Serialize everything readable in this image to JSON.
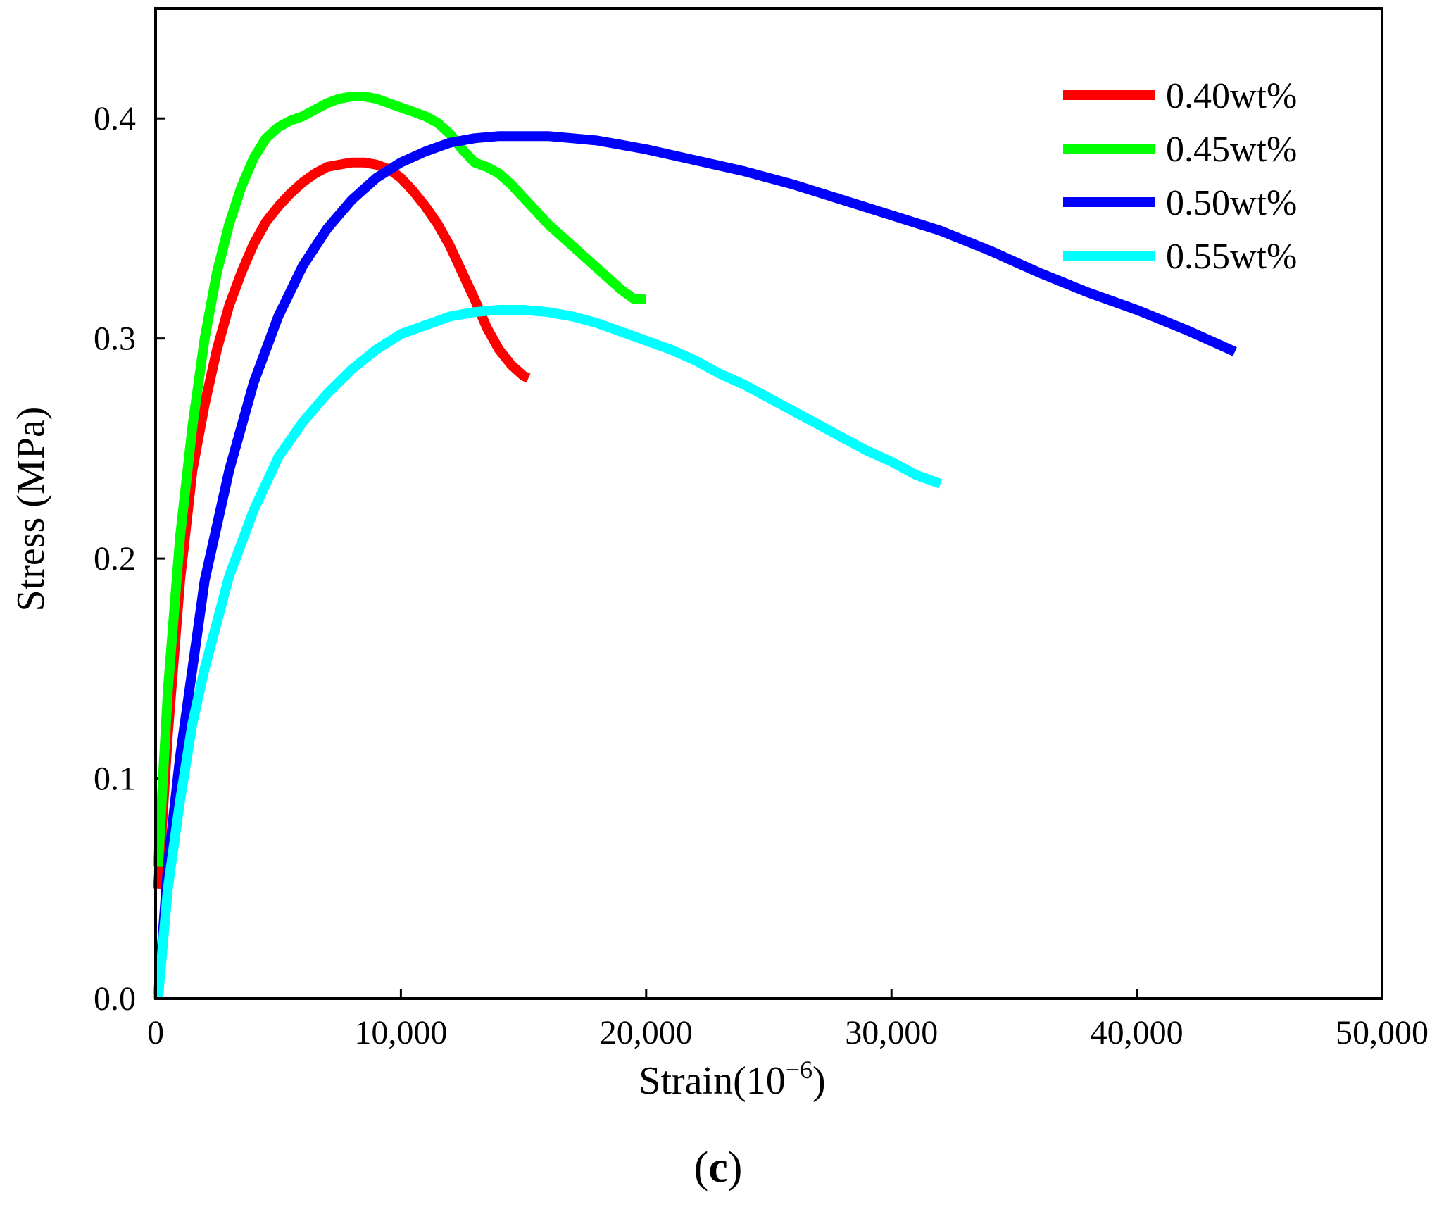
{
  "chart_data": {
    "type": "line",
    "title": "",
    "xlabel": "Strain(10",
    "xlabel_exp": "−6",
    "xlabel_close": ")",
    "ylabel": "Stress (MPa)",
    "panel_label": "c",
    "xlim": [
      0,
      50000
    ],
    "ylim": [
      0,
      0.45
    ],
    "xticks": [
      0,
      10000,
      20000,
      30000,
      40000,
      50000
    ],
    "xtick_labels": [
      "0",
      "10,000",
      "20,000",
      "30,000",
      "40,000",
      "50,000"
    ],
    "yticks": [
      0.0,
      0.1,
      0.2,
      0.3,
      0.4
    ],
    "ytick_labels": [
      "0.0",
      "0.1",
      "0.2",
      "0.3",
      "0.4"
    ],
    "legend_position": "top-right",
    "series": [
      {
        "name": "0.40wt%",
        "color": "#ff0000",
        "x": [
          100,
          500,
          1000,
          1500,
          2000,
          2500,
          3000,
          3500,
          4000,
          4500,
          5000,
          5500,
          6000,
          6500,
          7000,
          7500,
          8000,
          8500,
          9000,
          9500,
          10000,
          10500,
          11000,
          11500,
          12000,
          12500,
          13000,
          13500,
          14000,
          14500,
          15000,
          15200
        ],
        "y": [
          0.05,
          0.12,
          0.19,
          0.24,
          0.27,
          0.295,
          0.315,
          0.33,
          0.343,
          0.353,
          0.36,
          0.366,
          0.371,
          0.375,
          0.378,
          0.379,
          0.38,
          0.38,
          0.379,
          0.377,
          0.373,
          0.367,
          0.36,
          0.352,
          0.342,
          0.33,
          0.318,
          0.305,
          0.295,
          0.288,
          0.283,
          0.282
        ]
      },
      {
        "name": "0.45wt%",
        "color": "#00ff00",
        "x": [
          100,
          500,
          1000,
          1500,
          2000,
          2500,
          3000,
          3500,
          4000,
          4500,
          5000,
          5500,
          6000,
          6500,
          7000,
          7500,
          8000,
          8500,
          9000,
          9500,
          10000,
          10500,
          11000,
          11500,
          12000,
          12500,
          13000,
          13500,
          14000,
          14500,
          15000,
          15500,
          16000,
          16500,
          17000,
          17500,
          18000,
          18500,
          19000,
          19500,
          20000
        ],
        "y": [
          0.06,
          0.14,
          0.21,
          0.26,
          0.3,
          0.33,
          0.352,
          0.369,
          0.382,
          0.391,
          0.396,
          0.399,
          0.401,
          0.404,
          0.407,
          0.409,
          0.41,
          0.41,
          0.409,
          0.407,
          0.405,
          0.403,
          0.401,
          0.398,
          0.393,
          0.386,
          0.38,
          0.378,
          0.375,
          0.37,
          0.364,
          0.358,
          0.352,
          0.347,
          0.342,
          0.337,
          0.332,
          0.327,
          0.322,
          0.318,
          0.318
        ]
      },
      {
        "name": "0.50wt%",
        "color": "#0000ff",
        "x": [
          100,
          500,
          1000,
          1500,
          2000,
          3000,
          4000,
          5000,
          6000,
          7000,
          8000,
          9000,
          10000,
          11000,
          12000,
          13000,
          14000,
          15000,
          16000,
          17000,
          18000,
          19000,
          20000,
          22000,
          24000,
          26000,
          28000,
          30000,
          32000,
          34000,
          36000,
          38000,
          40000,
          42000,
          44000
        ],
        "y": [
          0.0,
          0.06,
          0.11,
          0.15,
          0.19,
          0.24,
          0.28,
          0.31,
          0.333,
          0.35,
          0.363,
          0.373,
          0.38,
          0.385,
          0.389,
          0.391,
          0.392,
          0.392,
          0.392,
          0.391,
          0.39,
          0.388,
          0.386,
          0.381,
          0.376,
          0.37,
          0.363,
          0.356,
          0.349,
          0.34,
          0.33,
          0.321,
          0.313,
          0.304,
          0.294
        ]
      },
      {
        "name": "0.55wt%",
        "color": "#00ffff",
        "x": [
          100,
          500,
          1000,
          1500,
          2000,
          3000,
          4000,
          5000,
          6000,
          7000,
          8000,
          9000,
          10000,
          11000,
          12000,
          13000,
          14000,
          15000,
          16000,
          17000,
          18000,
          19000,
          20000,
          21000,
          22000,
          23000,
          24000,
          25000,
          26000,
          27000,
          28000,
          29000,
          30000,
          31000,
          32000
        ],
        "y": [
          0.0,
          0.05,
          0.09,
          0.125,
          0.15,
          0.192,
          0.222,
          0.246,
          0.262,
          0.275,
          0.286,
          0.295,
          0.302,
          0.306,
          0.31,
          0.312,
          0.313,
          0.313,
          0.312,
          0.31,
          0.307,
          0.303,
          0.299,
          0.295,
          0.29,
          0.284,
          0.279,
          0.273,
          0.267,
          0.261,
          0.255,
          0.249,
          0.244,
          0.238,
          0.234
        ]
      }
    ]
  }
}
